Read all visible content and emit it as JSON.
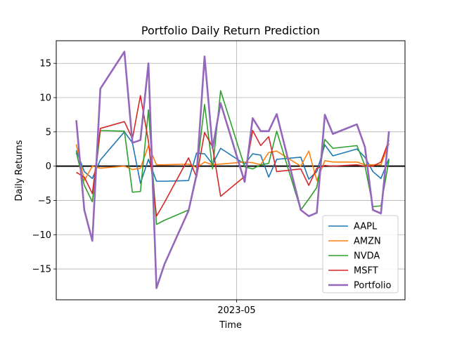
{
  "chart_data": {
    "type": "line",
    "title": "Portfolio Daily Return Prediction",
    "xlabel": "Time",
    "ylabel": "Daily Returns",
    "ylim": [
      -19.5,
      18.3
    ],
    "xlim": [
      -2.5,
      41.0
    ],
    "x_tick_labels": [
      {
        "x": 20,
        "label": "2023-05"
      }
    ],
    "y_ticks": [
      -15,
      -10,
      -5,
      0,
      5,
      10,
      15
    ],
    "grid": true,
    "zero_line": true,
    "legend_position": "lower-right",
    "x": [
      0,
      1,
      2,
      3,
      6,
      7,
      8,
      9,
      10,
      11,
      14,
      15,
      16,
      17,
      18,
      21,
      22,
      23,
      24,
      25,
      28,
      29,
      30,
      31,
      32,
      35,
      36,
      37,
      38,
      39
    ],
    "series": [
      {
        "name": "AAPL",
        "color": "#1f77b4",
        "values": [
          2.3,
          -0.8,
          -1.8,
          0.9,
          5.0,
          3.4,
          -2.5,
          1.0,
          -2.2,
          -2.2,
          -2.1,
          1.9,
          1.8,
          0.3,
          2.6,
          0.3,
          1.8,
          1.6,
          -1.6,
          1.0,
          1.3,
          -1.9,
          -0.8,
          3.1,
          1.5,
          2.5,
          1.3,
          -0.8,
          -1.8,
          1.1
        ]
      },
      {
        "name": "AMZN",
        "color": "#ff7f0e",
        "values": [
          3.2,
          -2.1,
          0.0,
          -0.3,
          0.0,
          -0.5,
          -0.3,
          3.0,
          0.2,
          0.2,
          0.3,
          -0.2,
          0.6,
          0.2,
          0.3,
          0.6,
          0.5,
          0.2,
          2.0,
          2.2,
          0.0,
          2.2,
          -2.1,
          0.8,
          0.6,
          0.6,
          0.2,
          0.2,
          0.2,
          3.3
        ]
      },
      {
        "name": "NVDA",
        "color": "#2ca02c",
        "values": [
          2.0,
          -2.8,
          -5.2,
          5.2,
          5.1,
          -3.8,
          -3.7,
          8.2,
          -8.5,
          -7.9,
          -6.4,
          -1.0,
          9.0,
          -0.4,
          11.0,
          -0.1,
          -0.4,
          0.2,
          0.4,
          5.1,
          -6.4,
          -4.8,
          -3.1,
          3.9,
          2.6,
          3.0,
          0.1,
          -5.9,
          -5.8,
          0.9
        ]
      },
      {
        "name": "MSFT",
        "color": "#d62728",
        "values": [
          -0.9,
          -1.6,
          -4.0,
          5.5,
          6.5,
          4.0,
          10.3,
          3.6,
          -7.3,
          -5.3,
          1.2,
          -1.6,
          4.9,
          2.8,
          -4.4,
          -1.5,
          5.2,
          3.0,
          4.3,
          -0.8,
          -0.4,
          -2.8,
          -0.3,
          0.1,
          0.0,
          0.2,
          0.0,
          0.0,
          0.6,
          3.8
        ]
      },
      {
        "name": "Portfolio",
        "color": "#9467bd",
        "values": [
          6.7,
          -6.4,
          -10.9,
          11.3,
          16.7,
          3.4,
          3.8,
          15.0,
          -17.8,
          -14.3,
          -6.5,
          -1.3,
          16.0,
          2.6,
          9.2,
          -2.3,
          7.0,
          5.1,
          5.1,
          7.6,
          -6.4,
          -7.3,
          -6.8,
          7.5,
          4.7,
          6.1,
          2.8,
          -6.4,
          -6.9,
          5.1
        ]
      }
    ]
  }
}
